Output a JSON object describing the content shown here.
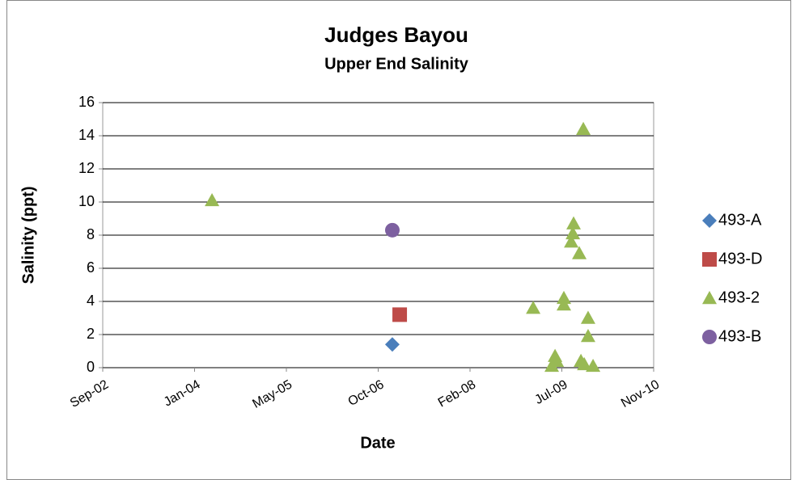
{
  "chart_data": {
    "type": "scatter",
    "title": "Judges Bayou",
    "subtitle": "Upper End Salinity",
    "x_label": "Date",
    "y_label": "Salinity (ppt)",
    "xlim": [
      37500,
      40500
    ],
    "xticks": [
      {
        "value": 37500,
        "label": "Sep-02"
      },
      {
        "value": 38000,
        "label": "Jan-04"
      },
      {
        "value": 38500,
        "label": "May-05"
      },
      {
        "value": 39000,
        "label": "Oct-06"
      },
      {
        "value": 39500,
        "label": "Feb-08"
      },
      {
        "value": 40000,
        "label": "Jul-09"
      },
      {
        "value": 40500,
        "label": "Nov-10"
      }
    ],
    "ylim": [
      0,
      16
    ],
    "yticks": [
      0,
      2,
      4,
      6,
      8,
      10,
      12,
      14,
      16
    ],
    "grid": true,
    "legend": "right",
    "series": [
      {
        "name": "493-A",
        "color": "#4a7ebb",
        "marker": "diamond",
        "x": [
          39077
        ],
        "values": [
          1.4
        ]
      },
      {
        "name": "493-D",
        "color": "#be4b48",
        "marker": "square",
        "x": [
          39117
        ],
        "values": [
          3.2
        ]
      },
      {
        "name": "493-2",
        "color": "#98b954",
        "marker": "triangle",
        "x": [
          38095,
          39844,
          39945,
          39963,
          39972,
          40011,
          40011,
          40064,
          40060,
          40051,
          40095,
          40117,
          40104,
          40122,
          40143,
          40143,
          40170
        ],
        "values": [
          10.1,
          3.6,
          0.1,
          0.7,
          0.4,
          4.2,
          3.8,
          8.7,
          8.1,
          7.6,
          6.9,
          14.4,
          0.4,
          0.2,
          3.0,
          1.9,
          0.1
        ]
      },
      {
        "name": "493-B",
        "color": "#7d60a0",
        "marker": "circle",
        "x": [
          39077
        ],
        "values": [
          8.3
        ]
      }
    ]
  }
}
